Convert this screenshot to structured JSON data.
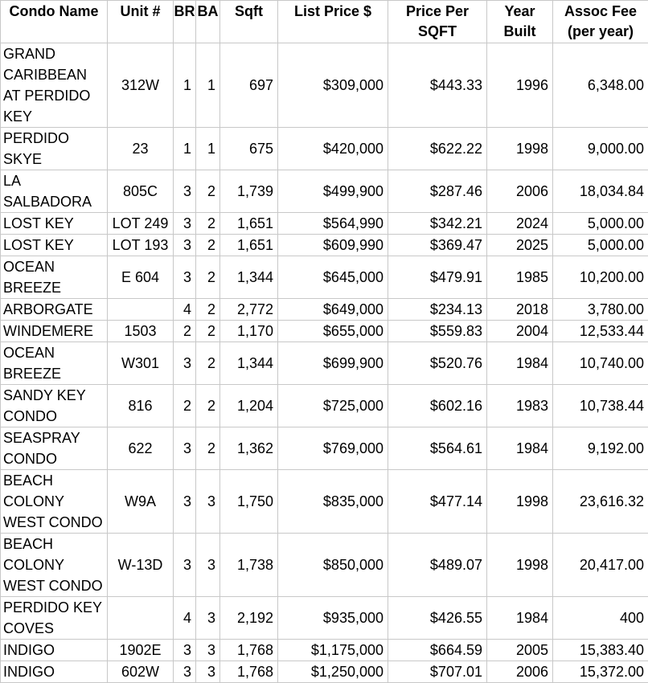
{
  "table": {
    "columns": [
      {
        "key": "name",
        "label": "Condo Name"
      },
      {
        "key": "unit",
        "label": "Unit #"
      },
      {
        "key": "br",
        "label": "BR"
      },
      {
        "key": "ba",
        "label": "BA"
      },
      {
        "key": "sqft",
        "label": "Sqft"
      },
      {
        "key": "list_price",
        "label": "List Price $"
      },
      {
        "key": "price_per_sqft",
        "label": "Price Per\nSQFT"
      },
      {
        "key": "year_built",
        "label": "Year\nBuilt"
      },
      {
        "key": "assoc_fee",
        "label": "Assoc Fee\n(per year)"
      }
    ],
    "rows": [
      {
        "name": "GRAND CARIBBEAN AT PERDIDO KEY",
        "unit": "312W",
        "br": "1",
        "ba": "1",
        "sqft": "697",
        "list_price": "$309,000",
        "price_per_sqft": "$443.33",
        "year_built": "1996",
        "assoc_fee": "6,348.00"
      },
      {
        "name": "PERDIDO SKYE",
        "unit": "23",
        "br": "1",
        "ba": "1",
        "sqft": "675",
        "list_price": "$420,000",
        "price_per_sqft": "$622.22",
        "year_built": "1998",
        "assoc_fee": "9,000.00"
      },
      {
        "name": "LA SALBADORA",
        "unit": "805C",
        "br": "3",
        "ba": "2",
        "sqft": "1,739",
        "list_price": "$499,900",
        "price_per_sqft": "$287.46",
        "year_built": "2006",
        "assoc_fee": "18,034.84"
      },
      {
        "name": "LOST KEY",
        "unit": "LOT 249",
        "br": "3",
        "ba": "2",
        "sqft": "1,651",
        "list_price": "$564,990",
        "price_per_sqft": "$342.21",
        "year_built": "2024",
        "assoc_fee": "5,000.00"
      },
      {
        "name": "LOST KEY",
        "unit": "LOT 193",
        "br": "3",
        "ba": "2",
        "sqft": "1,651",
        "list_price": "$609,990",
        "price_per_sqft": "$369.47",
        "year_built": "2025",
        "assoc_fee": "5,000.00"
      },
      {
        "name": "OCEAN BREEZE",
        "unit": "E 604",
        "br": "3",
        "ba": "2",
        "sqft": "1,344",
        "list_price": "$645,000",
        "price_per_sqft": "$479.91",
        "year_built": "1985",
        "assoc_fee": "10,200.00"
      },
      {
        "name": "ARBORGATE",
        "unit": "",
        "br": "4",
        "ba": "2",
        "sqft": "2,772",
        "list_price": "$649,000",
        "price_per_sqft": "$234.13",
        "year_built": "2018",
        "assoc_fee": "3,780.00"
      },
      {
        "name": "WINDEMERE",
        "unit": "1503",
        "br": "2",
        "ba": "2",
        "sqft": "1,170",
        "list_price": "$655,000",
        "price_per_sqft": "$559.83",
        "year_built": "2004",
        "assoc_fee": "12,533.44"
      },
      {
        "name": "OCEAN BREEZE",
        "unit": "W301",
        "br": "3",
        "ba": "2",
        "sqft": "1,344",
        "list_price": "$699,900",
        "price_per_sqft": "$520.76",
        "year_built": "1984",
        "assoc_fee": "10,740.00"
      },
      {
        "name": "SANDY KEY CONDO",
        "unit": "816",
        "br": "2",
        "ba": "2",
        "sqft": "1,204",
        "list_price": "$725,000",
        "price_per_sqft": "$602.16",
        "year_built": "1983",
        "assoc_fee": "10,738.44"
      },
      {
        "name": "SEASPRAY CONDO",
        "unit": "622",
        "br": "3",
        "ba": "2",
        "sqft": "1,362",
        "list_price": "$769,000",
        "price_per_sqft": "$564.61",
        "year_built": "1984",
        "assoc_fee": "9,192.00"
      },
      {
        "name": "BEACH COLONY WEST CONDO",
        "unit": "W9A",
        "br": "3",
        "ba": "3",
        "sqft": "1,750",
        "list_price": "$835,000",
        "price_per_sqft": "$477.14",
        "year_built": "1998",
        "assoc_fee": "23,616.32"
      },
      {
        "name": "BEACH COLONY WEST CONDO",
        "unit": "W-13D",
        "br": "3",
        "ba": "3",
        "sqft": "1,738",
        "list_price": "$850,000",
        "price_per_sqft": "$489.07",
        "year_built": "1998",
        "assoc_fee": "20,417.00"
      },
      {
        "name": "PERDIDO KEY COVES",
        "unit": "",
        "br": "4",
        "ba": "3",
        "sqft": "2,192",
        "list_price": "$935,000",
        "price_per_sqft": "$426.55",
        "year_built": "1984",
        "assoc_fee": "400"
      },
      {
        "name": "INDIGO",
        "unit": "1902E",
        "br": "3",
        "ba": "3",
        "sqft": "1,768",
        "list_price": "$1,175,000",
        "price_per_sqft": "$664.59",
        "year_built": "2005",
        "assoc_fee": "15,383.40"
      },
      {
        "name": "INDIGO",
        "unit": "602W",
        "br": "3",
        "ba": "3",
        "sqft": "1,768",
        "list_price": "$1,250,000",
        "price_per_sqft": "$707.01",
        "year_built": "2006",
        "assoc_fee": "15,372.00"
      }
    ]
  }
}
